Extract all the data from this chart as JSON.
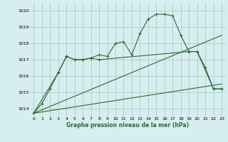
{
  "title": "Graphe pression niveau de la mer (hPa)",
  "background_color": "#d6eef0",
  "grid_color": "#aacccc",
  "line_color": "#2d6a2d",
  "xlim": [
    -0.5,
    23.5
  ],
  "ylim": [
    1013.5,
    1020.5
  ],
  "yticks": [
    1014,
    1015,
    1016,
    1017,
    1018,
    1019,
    1020
  ],
  "xticks": [
    0,
    1,
    2,
    3,
    4,
    5,
    6,
    7,
    8,
    9,
    10,
    11,
    12,
    13,
    14,
    15,
    16,
    17,
    18,
    19,
    20,
    21,
    22,
    23
  ],
  "series1": {
    "x": [
      0,
      1,
      2,
      3,
      4,
      5,
      6,
      7,
      8,
      9,
      10,
      11,
      12,
      13,
      14,
      15,
      16,
      17,
      18,
      19,
      20,
      21,
      22,
      23
    ],
    "y": [
      1013.7,
      1014.3,
      1015.2,
      1016.2,
      1017.2,
      1017.0,
      1017.0,
      1017.1,
      1017.3,
      1017.2,
      1018.0,
      1018.1,
      1017.3,
      1018.6,
      1019.5,
      1019.8,
      1019.8,
      1019.7,
      1018.5,
      1017.5,
      1017.5,
      1016.5,
      1015.2,
      1015.2
    ]
  },
  "series2": {
    "x": [
      0,
      3,
      4,
      5,
      6,
      7,
      8,
      19,
      20,
      22,
      23
    ],
    "y": [
      1013.7,
      1016.2,
      1017.2,
      1017.0,
      1017.0,
      1017.1,
      1017.0,
      1017.5,
      1017.5,
      1015.2,
      1015.2
    ]
  },
  "series_linear1": {
    "x": [
      0,
      23
    ],
    "y": [
      1013.7,
      1018.5
    ]
  },
  "series_linear2": {
    "x": [
      0,
      23
    ],
    "y": [
      1013.7,
      1015.5
    ]
  }
}
